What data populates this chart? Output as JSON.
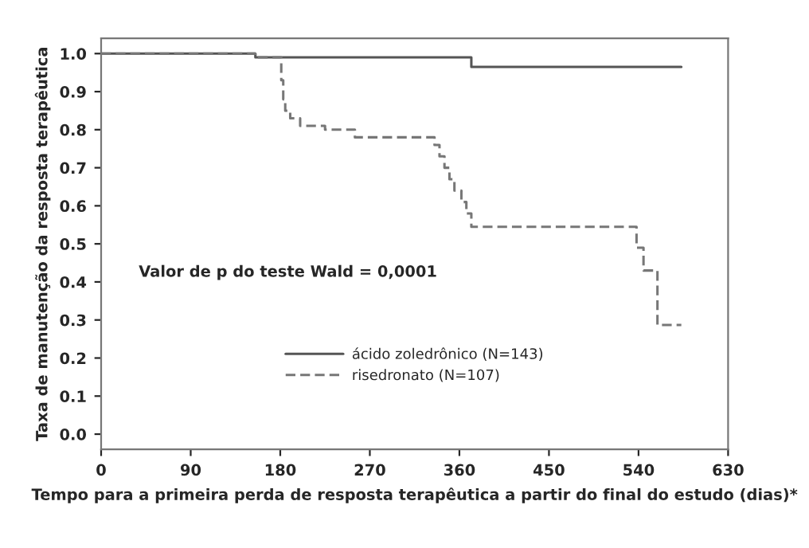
{
  "chart_data": {
    "type": "step",
    "xlabel": "Tempo para a primeira perda de resposta terapêutica a partir do final do estudo (dias)*",
    "ylabel": "Taxa de manutenção da resposta terapêutica",
    "series": [
      {
        "name": "ácido zoledrônico (N=143)",
        "color": "#555555",
        "line_style": "solid",
        "x": [
          0,
          155,
          372,
          583
        ],
        "values": [
          1.0,
          0.99,
          0.965,
          0.965
        ]
      },
      {
        "name": "risedronato (N=107)",
        "color": "#777777",
        "line_style": "dashed",
        "x": [
          0,
          155,
          181,
          183,
          185,
          190,
          200,
          225,
          255,
          335,
          340,
          345,
          350,
          355,
          362,
          367,
          372,
          538,
          545,
          550,
          559,
          583
        ],
        "values": [
          1.0,
          0.99,
          0.93,
          0.88,
          0.85,
          0.83,
          0.81,
          0.8,
          0.78,
          0.76,
          0.73,
          0.7,
          0.67,
          0.64,
          0.61,
          0.58,
          0.545,
          0.49,
          0.43,
          0.43,
          0.287,
          0.287
        ]
      }
    ],
    "xlim": [
      0,
      630
    ],
    "xticks": [
      0,
      90,
      180,
      270,
      360,
      450,
      540,
      630
    ],
    "ylim": [
      -0.04,
      1.04
    ],
    "yticks": [
      {
        "value": 0.0,
        "label": "0.0"
      },
      {
        "value": 0.1,
        "label": "0.1"
      },
      {
        "value": 0.2,
        "label": "0.2"
      },
      {
        "value": 0.3,
        "label": "0.3"
      },
      {
        "value": 0.4,
        "label": "0.4"
      },
      {
        "value": 0.5,
        "label": "0.5"
      },
      {
        "value": 0.6,
        "label": "0.6"
      },
      {
        "value": 0.7,
        "label": "0.7"
      },
      {
        "value": 0.8,
        "label": "0.8"
      },
      {
        "value": 0.9,
        "label": "0.9"
      },
      {
        "value": 1.0,
        "label": "1.0"
      }
    ],
    "annotations": [
      "Valor de p do teste Wald = 0,0001"
    ],
    "legend": "bottom",
    "grid": false
  }
}
